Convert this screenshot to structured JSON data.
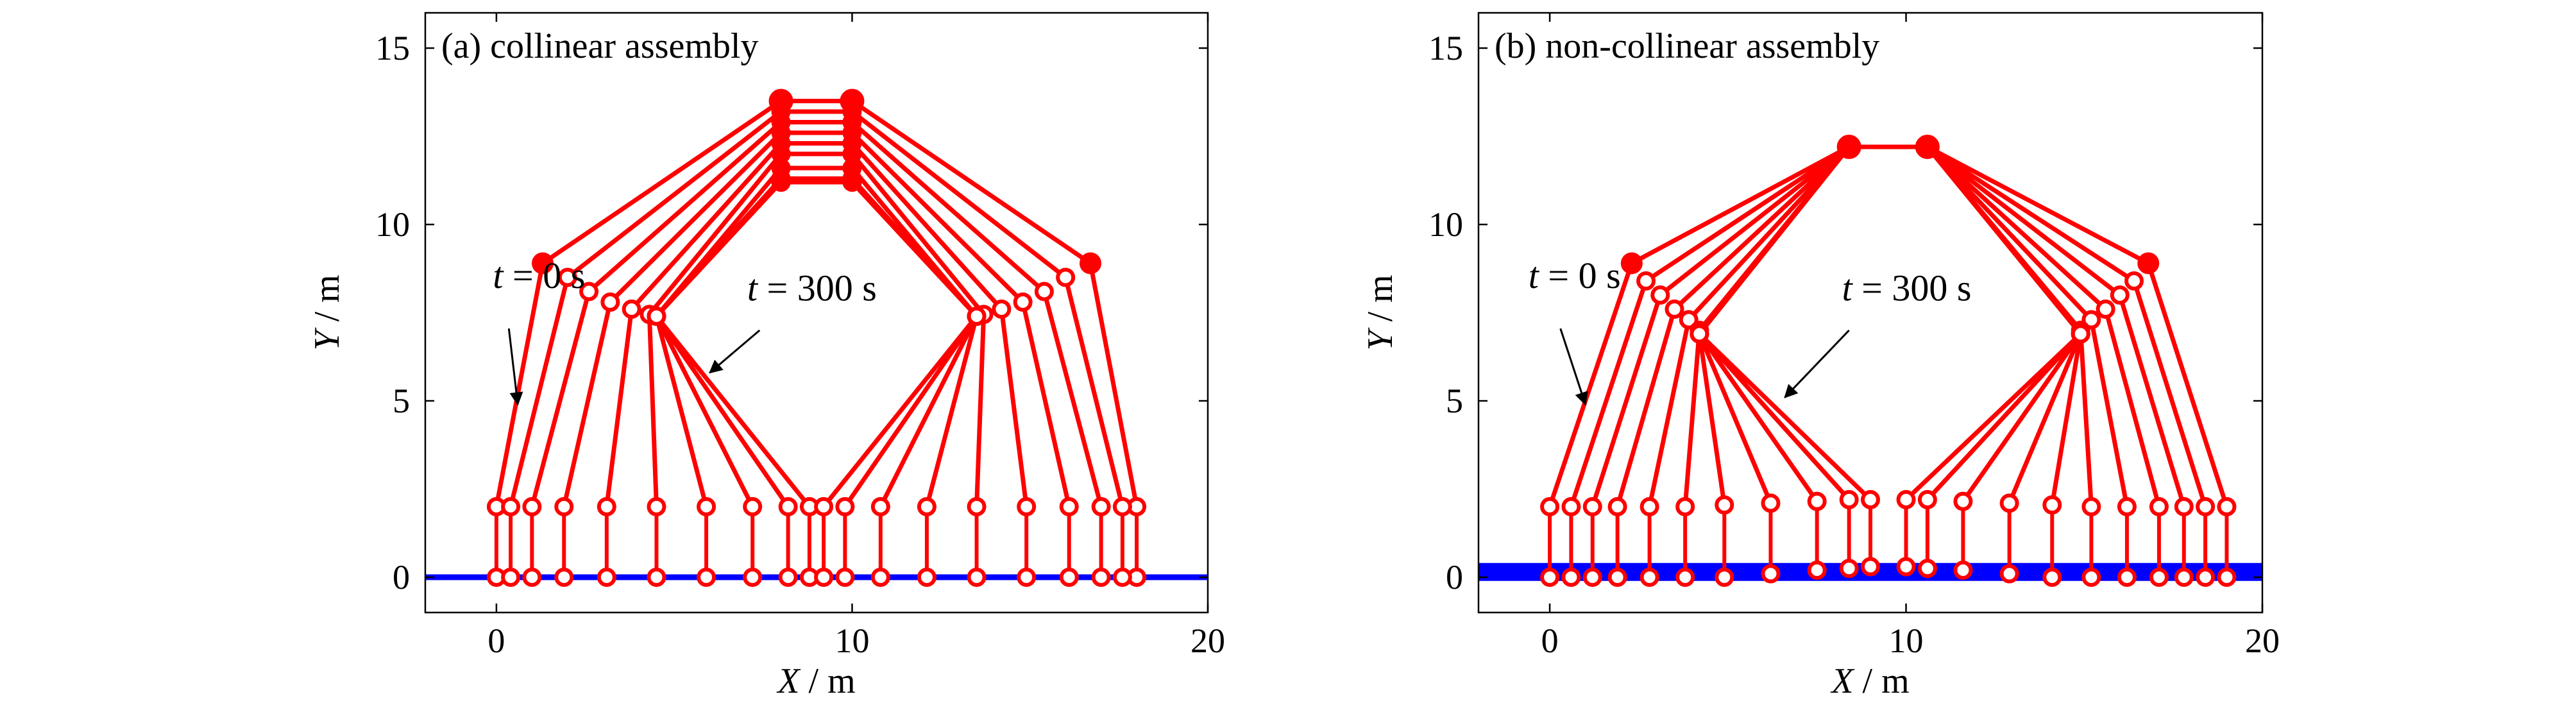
{
  "chart_data": [
    {
      "type": "line",
      "panel_label": "(a) collinear assembly",
      "xlabel_var": "X",
      "xlabel_unit": " / m",
      "ylabel_var": "Y",
      "ylabel_unit": " / m",
      "xlim": [
        -2,
        20
      ],
      "ylim": [
        -1,
        16
      ],
      "xticks": [
        0,
        10,
        20
      ],
      "yticks": [
        0,
        5,
        10,
        15
      ],
      "ground_y": 0,
      "ground_x": [
        -2,
        20
      ],
      "frames": [
        {
          "base": [
            [
              0,
              0
            ],
            [
              18,
              0
            ]
          ],
          "joint": [
            [
              0,
              2
            ],
            [
              18,
              2
            ]
          ],
          "top": [
            [
              1.3,
              8.9
            ],
            [
              16.7,
              8.9
            ]
          ],
          "apex": [
            [
              8,
              13.5
            ],
            [
              10,
              13.5
            ]
          ]
        },
        {
          "base": [
            [
              0.4,
              0
            ],
            [
              17.6,
              0
            ]
          ],
          "joint": [
            [
              0.4,
              2
            ],
            [
              17.6,
              2
            ]
          ],
          "top": [
            [
              2,
              8.5
            ],
            [
              16,
              8.5
            ]
          ],
          "apex": [
            [
              8,
              13.2
            ],
            [
              10,
              13.2
            ]
          ]
        },
        {
          "base": [
            [
              1,
              0
            ],
            [
              17,
              0
            ]
          ],
          "joint": [
            [
              1,
              2
            ],
            [
              17,
              2
            ]
          ],
          "top": [
            [
              2.6,
              8.1
            ],
            [
              15.4,
              8.1
            ]
          ],
          "apex": [
            [
              8,
              12.9
            ],
            [
              10,
              12.9
            ]
          ]
        },
        {
          "base": [
            [
              1.9,
              0
            ],
            [
              16.1,
              0
            ]
          ],
          "joint": [
            [
              1.9,
              2
            ],
            [
              16.1,
              2
            ]
          ],
          "top": [
            [
              3.2,
              7.8
            ],
            [
              14.8,
              7.8
            ]
          ],
          "apex": [
            [
              8,
              12.6
            ],
            [
              10,
              12.6
            ]
          ]
        },
        {
          "base": [
            [
              3.1,
              0
            ],
            [
              14.9,
              0
            ]
          ],
          "joint": [
            [
              3.1,
              2
            ],
            [
              14.9,
              2
            ]
          ],
          "top": [
            [
              3.8,
              7.6
            ],
            [
              14.2,
              7.6
            ]
          ],
          "apex": [
            [
              8,
              12.3
            ],
            [
              10,
              12.3
            ]
          ]
        },
        {
          "base": [
            [
              4.5,
              0
            ],
            [
              13.5,
              0
            ]
          ],
          "joint": [
            [
              4.5,
              2
            ],
            [
              13.5,
              2
            ]
          ],
          "top": [
            [
              4.3,
              7.45
            ],
            [
              13.7,
              7.45
            ]
          ],
          "apex": [
            [
              8,
              12
            ],
            [
              10,
              12
            ]
          ]
        },
        {
          "base": [
            [
              5.9,
              0
            ],
            [
              12.1,
              0
            ]
          ],
          "joint": [
            [
              5.9,
              2
            ],
            [
              12.1,
              2
            ]
          ],
          "top": [
            [
              4.5,
              7.4
            ],
            [
              13.5,
              7.4
            ]
          ],
          "apex": [
            [
              8,
              11.6
            ],
            [
              10,
              11.6
            ]
          ]
        },
        {
          "base": [
            [
              7.2,
              0
            ],
            [
              10.8,
              0
            ]
          ],
          "joint": [
            [
              7.2,
              2
            ],
            [
              10.8,
              2
            ]
          ],
          "top": [
            [
              4.5,
              7.4
            ],
            [
              13.5,
              7.4
            ]
          ],
          "apex": [
            [
              8,
              11.3
            ],
            [
              10,
              11.3
            ]
          ]
        },
        {
          "base": [
            [
              8.2,
              0
            ],
            [
              9.8,
              0
            ]
          ],
          "joint": [
            [
              8.2,
              2
            ],
            [
              9.8,
              2
            ]
          ],
          "top": [
            [
              4.5,
              7.4
            ],
            [
              13.5,
              7.4
            ]
          ],
          "apex": [
            [
              8,
              11.2
            ],
            [
              10,
              11.2
            ]
          ]
        },
        {
          "base": [
            [
              8.8,
              0
            ],
            [
              9.2,
              0
            ]
          ],
          "joint": [
            [
              8.8,
              2
            ],
            [
              9.2,
              2
            ]
          ],
          "top": [
            [
              4.5,
              7.4
            ],
            [
              13.5,
              7.4
            ]
          ],
          "apex": [
            [
              8,
              11.2
            ],
            [
              10,
              11.2
            ]
          ]
        }
      ],
      "annotations": [
        {
          "var": "t",
          "text": " = 0 s",
          "label_at": [
            -0.1,
            8.2
          ],
          "arrow_from": [
            0.35,
            7.05
          ],
          "arrow_to": [
            0.6,
            4.9
          ]
        },
        {
          "var": "t",
          "text": " = 300 s",
          "label_at": [
            7.05,
            7.85
          ],
          "arrow_from": [
            7.4,
            7.0
          ],
          "arrow_to": [
            6.0,
            5.8
          ]
        }
      ]
    },
    {
      "type": "line",
      "panel_label": "(b) non-collinear assembly",
      "xlabel_var": "X",
      "xlabel_unit": " / m",
      "ylabel_var": "Y",
      "ylabel_unit": " / m",
      "xlim": [
        -2,
        20
      ],
      "ylim": [
        -1,
        16
      ],
      "xticks": [
        0,
        10,
        20
      ],
      "yticks": [
        0,
        5,
        10,
        15
      ],
      "ground_y": 0.15,
      "ground_x": [
        -2,
        20
      ],
      "frames": [
        {
          "base": [
            [
              0,
              0
            ],
            [
              19,
              0
            ]
          ],
          "joint": [
            [
              0,
              2
            ],
            [
              19,
              2
            ]
          ],
          "top": [
            [
              2.3,
              8.9
            ],
            [
              16.8,
              8.9
            ]
          ],
          "apex": [
            [
              8.4,
              12.2
            ],
            [
              10.6,
              12.2
            ]
          ]
        },
        {
          "base": [
            [
              0.6,
              0
            ],
            [
              18.4,
              0
            ]
          ],
          "joint": [
            [
              0.6,
              2
            ],
            [
              18.4,
              2
            ]
          ],
          "top": [
            [
              2.7,
              8.4
            ],
            [
              16.4,
              8.4
            ]
          ],
          "apex": [
            [
              8.4,
              12.2
            ],
            [
              10.6,
              12.2
            ]
          ]
        },
        {
          "base": [
            [
              1.2,
              0
            ],
            [
              17.8,
              0
            ]
          ],
          "joint": [
            [
              1.2,
              2
            ],
            [
              17.8,
              2
            ]
          ],
          "top": [
            [
              3.1,
              8
            ],
            [
              16,
              8
            ]
          ],
          "apex": [
            [
              8.4,
              12.2
            ],
            [
              10.6,
              12.2
            ]
          ]
        },
        {
          "base": [
            [
              1.9,
              0
            ],
            [
              17.1,
              0
            ]
          ],
          "joint": [
            [
              1.9,
              2
            ],
            [
              17.1,
              2
            ]
          ],
          "top": [
            [
              3.5,
              7.6
            ],
            [
              15.6,
              7.6
            ]
          ],
          "apex": [
            [
              8.4,
              12.2
            ],
            [
              10.6,
              12.2
            ]
          ]
        },
        {
          "base": [
            [
              2.8,
              0
            ],
            [
              16.2,
              0
            ]
          ],
          "joint": [
            [
              2.8,
              2
            ],
            [
              16.2,
              2
            ]
          ],
          "top": [
            [
              3.9,
              7.3
            ],
            [
              15.2,
              7.3
            ]
          ],
          "apex": [
            [
              8.4,
              12.2
            ],
            [
              10.6,
              12.2
            ]
          ]
        },
        {
          "base": [
            [
              3.8,
              0
            ],
            [
              15.2,
              0
            ]
          ],
          "joint": [
            [
              3.8,
              2
            ],
            [
              15.2,
              2
            ]
          ],
          "top": [
            [
              4.2,
              7.0
            ],
            [
              14.9,
              7.0
            ]
          ],
          "apex": [
            [
              8.4,
              12.2
            ],
            [
              10.6,
              12.2
            ]
          ]
        },
        {
          "base": [
            [
              4.9,
              0
            ],
            [
              14.1,
              0
            ]
          ],
          "joint": [
            [
              4.9,
              2.05
            ],
            [
              14.1,
              2.05
            ]
          ],
          "top": [
            [
              4.2,
              6.9
            ],
            [
              14.9,
              6.9
            ]
          ],
          "apex": [
            [
              8.4,
              12.2
            ],
            [
              10.6,
              12.2
            ]
          ]
        },
        {
          "base": [
            [
              6.2,
              0.1
            ],
            [
              12.9,
              0.1
            ]
          ],
          "joint": [
            [
              6.2,
              2.1
            ],
            [
              12.9,
              2.1
            ]
          ],
          "top": [
            [
              4.2,
              6.9
            ],
            [
              14.9,
              6.9
            ]
          ],
          "apex": [
            [
              8.4,
              12.2
            ],
            [
              10.6,
              12.2
            ]
          ]
        },
        {
          "base": [
            [
              7.5,
              0.2
            ],
            [
              11.6,
              0.2
            ]
          ],
          "joint": [
            [
              7.5,
              2.15
            ],
            [
              11.6,
              2.15
            ]
          ],
          "top": [
            [
              4.2,
              6.9
            ],
            [
              14.9,
              6.9
            ]
          ],
          "apex": [
            [
              8.4,
              12.2
            ],
            [
              10.6,
              12.2
            ]
          ]
        },
        {
          "base": [
            [
              8.4,
              0.25
            ],
            [
              10.6,
              0.25
            ]
          ],
          "joint": [
            [
              8.4,
              2.2
            ],
            [
              10.6,
              2.2
            ]
          ],
          "top": [
            [
              4.2,
              6.9
            ],
            [
              14.9,
              6.9
            ]
          ],
          "apex": [
            [
              8.4,
              12.2
            ],
            [
              10.6,
              12.2
            ]
          ]
        },
        {
          "base": [
            [
              9.0,
              0.3
            ],
            [
              10.0,
              0.3
            ]
          ],
          "joint": [
            [
              9.0,
              2.2
            ],
            [
              10.0,
              2.2
            ]
          ],
          "top": [
            [
              4.2,
              6.9
            ],
            [
              14.9,
              6.9
            ]
          ],
          "apex": [
            [
              8.4,
              12.2
            ],
            [
              10.6,
              12.2
            ]
          ]
        }
      ],
      "annotations": [
        {
          "var": "t",
          "text": " = 0 s",
          "label_at": [
            -0.6,
            8.2
          ],
          "arrow_from": [
            0.3,
            7.05
          ],
          "arrow_to": [
            1.0,
            4.9
          ]
        },
        {
          "var": "t",
          "text": " = 300 s",
          "label_at": [
            8.2,
            7.85
          ],
          "arrow_from": [
            8.4,
            7.0
          ],
          "arrow_to": [
            6.6,
            5.1
          ]
        }
      ]
    }
  ]
}
